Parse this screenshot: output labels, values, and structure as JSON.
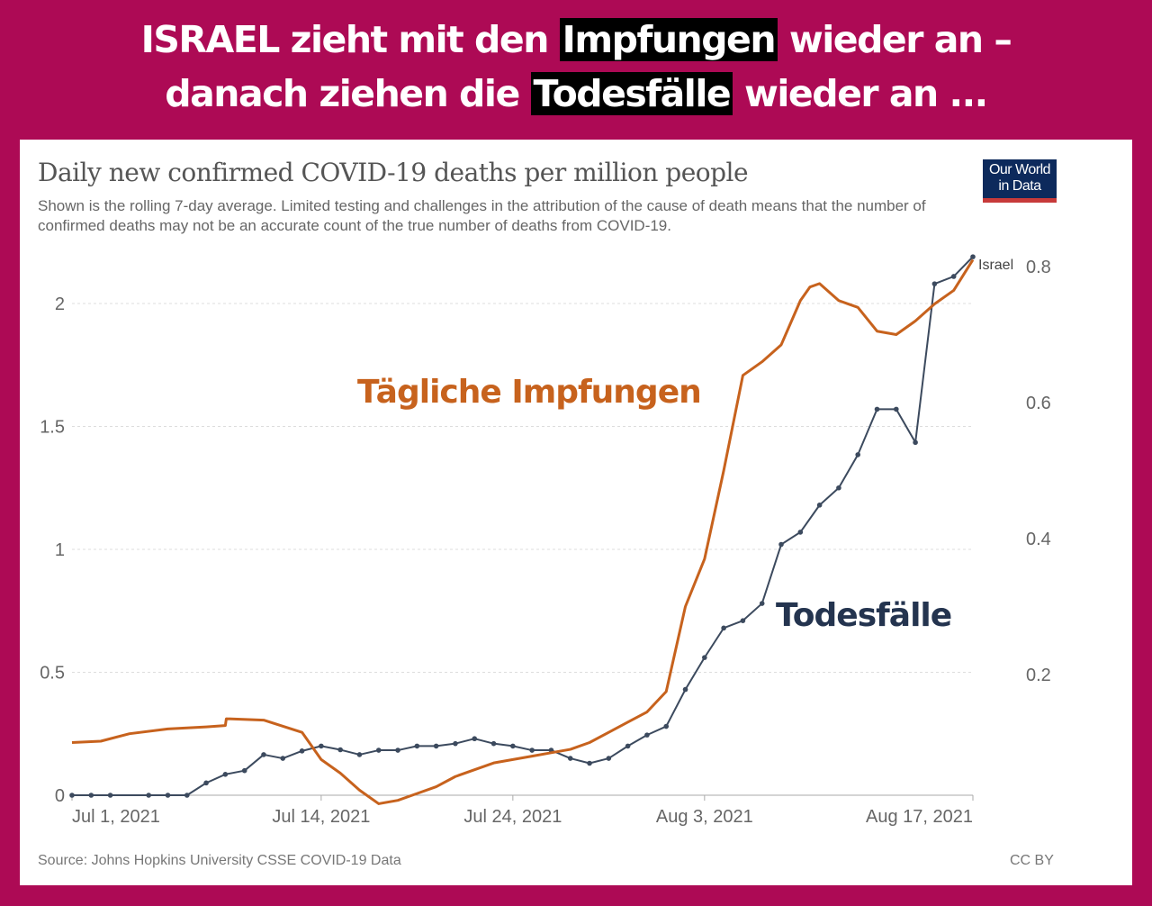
{
  "headline": {
    "line1_pre": "ISRAEL zieht mit den ",
    "line1_hl": "Impfungen",
    "line1_post": " wieder an –",
    "line2_pre": "danach ziehen die ",
    "line2_hl": "Todesfälle",
    "line2_post": " wieder an ..."
  },
  "colors": {
    "background": "#ad0a55",
    "deaths_line": "#3c4a5e",
    "vaccinations_line": "#c7621d",
    "logo_bg": "#0d2a5c",
    "logo_bar": "#c73a3a"
  },
  "logo": {
    "line1": "Our World",
    "line2": "in Data"
  },
  "footer": {
    "source": "Source: Johns Hopkins University CSSE COVID-19 Data",
    "license": "CC BY"
  },
  "chart_data": {
    "type": "line",
    "title": "Daily new confirmed COVID-19 deaths per million people",
    "subtitle": "Shown is the rolling 7-day average. Limited testing and challenges in the attribution of the cause of death means that the number of confirmed deaths may not be an accurate count of the true number of deaths from COVID-19.",
    "xlabel": "",
    "ylabel": "",
    "x_start": "2021-07-01",
    "x_end": "2021-08-17",
    "x_ticks": [
      {
        "day": 0,
        "label": "Jul 1, 2021"
      },
      {
        "day": 13,
        "label": "Jul 14, 2021"
      },
      {
        "day": 23,
        "label": "Jul 24, 2021"
      },
      {
        "day": 33,
        "label": "Aug 3, 2021"
      },
      {
        "day": 47,
        "label": "Aug 17, 2021"
      }
    ],
    "y_left": {
      "ylim": [
        0,
        2.0
      ],
      "ticks": [
        "0",
        "0.5",
        "1",
        "1.5",
        "2"
      ],
      "tick_values": [
        0,
        0.5,
        1,
        1.5,
        2
      ]
    },
    "y_right": {
      "ylim": [
        0,
        0.8
      ],
      "ticks": [
        "0.2",
        "0.4",
        "0.6",
        "0.8"
      ],
      "tick_values": [
        0.2,
        0.4,
        0.6,
        0.8
      ]
    },
    "grid": true,
    "series": [
      {
        "name": "Israel",
        "label": "Israel",
        "annotation": "Todesfälle",
        "axis": "left",
        "markers": true,
        "x": [
          0,
          1,
          2,
          4,
          5,
          6,
          7,
          8,
          9,
          10,
          11,
          12,
          13,
          14,
          15,
          16,
          17,
          18,
          19,
          20,
          21,
          22,
          23,
          24,
          25,
          26,
          27,
          28,
          29,
          30,
          31,
          32,
          33,
          34,
          35,
          36,
          37,
          38,
          39,
          40,
          41,
          42,
          43,
          44,
          45,
          46,
          47
        ],
        "values": [
          0,
          0,
          0,
          0,
          0,
          0,
          0.05,
          0.085,
          0.1,
          0.165,
          0.15,
          0.18,
          0.2,
          0.185,
          0.165,
          0.183,
          0.183,
          0.2,
          0.2,
          0.21,
          0.23,
          0.21,
          0.2,
          0.183,
          0.183,
          0.15,
          0.13,
          0.15,
          0.2,
          0.245,
          0.28,
          0.43,
          0.56,
          0.68,
          0.71,
          0.78,
          1.02,
          1.07,
          1.18,
          1.25,
          1.385,
          1.57,
          1.57,
          1.435,
          2.08,
          2.11,
          2.19
        ]
      },
      {
        "name": "Tägliche Impfungen",
        "annotation": "Tägliche Impfungen",
        "axis": "right",
        "markers": false,
        "x": [
          0,
          1.5,
          3,
          5,
          7,
          8,
          8.05,
          10,
          12,
          13,
          14,
          15,
          16,
          17,
          18,
          19,
          20,
          21,
          22,
          23,
          24,
          25,
          26,
          27,
          28,
          29,
          30,
          31,
          32,
          33,
          34,
          35,
          36,
          37,
          38,
          38.5,
          39,
          40,
          40.5,
          41,
          42,
          43,
          44,
          45,
          46,
          47
        ],
        "values": [
          0.1,
          0.102,
          0.113,
          0.12,
          0.123,
          0.125,
          0.135,
          0.133,
          0.115,
          0.075,
          0.055,
          0.03,
          0.01,
          0.015,
          0.025,
          0.035,
          0.05,
          0.06,
          0.07,
          0.075,
          0.08,
          0.085,
          0.09,
          0.1,
          0.115,
          0.13,
          0.145,
          0.175,
          0.3,
          0.37,
          0.5,
          0.64,
          0.66,
          0.685,
          0.75,
          0.77,
          0.775,
          0.75,
          0.745,
          0.74,
          0.705,
          0.7,
          0.72,
          0.745,
          0.765,
          0.81
        ]
      }
    ],
    "annotations": [
      {
        "text": "Tägliche Impfungen",
        "color": "#c7621d"
      },
      {
        "text": "Todesfälle",
        "color": "#24344f"
      }
    ]
  }
}
